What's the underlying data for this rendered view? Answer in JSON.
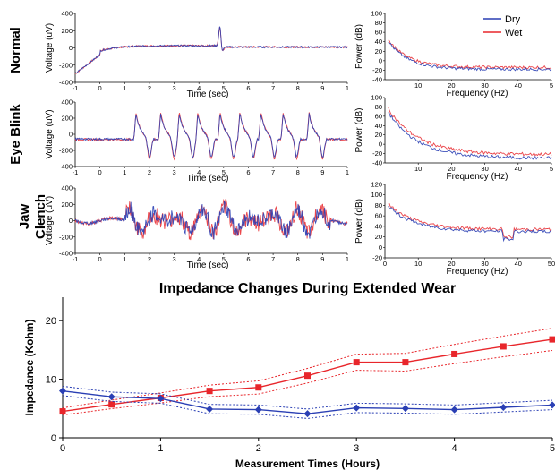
{
  "colors": {
    "dry": "#2a3fb4",
    "wet": "#e8262b"
  },
  "legend": {
    "dry": "Dry",
    "wet": "Wet"
  },
  "rows": [
    {
      "label": "Normal"
    },
    {
      "label": "Eye Blink"
    },
    {
      "label": "Jaw Clench"
    }
  ],
  "chart_data": [
    {
      "type": "line",
      "title": "",
      "xlabel": "Time (sec)",
      "ylabel": "Voltage (uV)",
      "xlim": [
        -1,
        10
      ],
      "ylim": [
        -400,
        400
      ],
      "x_ticks": [
        "-1",
        "0",
        "1",
        "2",
        "3",
        "4",
        "5",
        "6",
        "7",
        "8",
        "9",
        "1"
      ],
      "y_ticks": [
        "400",
        "200",
        "0",
        "-200",
        "-400"
      ],
      "series": [
        {
          "name": "Dry"
        },
        {
          "name": "Wet"
        }
      ]
    },
    {
      "type": "line",
      "title": "",
      "xlabel": "Frequency (Hz)",
      "ylabel": "Power (dB)",
      "xlim": [
        0,
        50
      ],
      "ylim": [
        -40,
        100
      ],
      "x_ticks": [
        "10",
        "20",
        "30",
        "40",
        "5"
      ],
      "y_ticks": [
        "100",
        "80",
        "60",
        "40",
        "20",
        "0",
        "-20",
        "-40"
      ],
      "series": [
        {
          "name": "Dry"
        },
        {
          "name": "Wet"
        }
      ]
    },
    {
      "type": "line",
      "title": "",
      "xlabel": "Time (sec)",
      "ylabel": "Voltage (uV)",
      "xlim": [
        -1,
        10
      ],
      "ylim": [
        -400,
        400
      ],
      "x_ticks": [
        "-1",
        "0",
        "1",
        "2",
        "3",
        "4",
        "5",
        "6",
        "7",
        "8",
        "9",
        "1"
      ],
      "y_ticks": [
        "400",
        "200",
        "0",
        "-200",
        "-400"
      ],
      "series": [
        {
          "name": "Dry"
        },
        {
          "name": "Wet"
        }
      ]
    },
    {
      "type": "line",
      "title": "",
      "xlabel": "Frequency (Hz)",
      "ylabel": "Power (dB)",
      "xlim": [
        0,
        50
      ],
      "ylim": [
        -40,
        100
      ],
      "x_ticks": [
        "10",
        "20",
        "30",
        "40",
        "5"
      ],
      "y_ticks": [
        "100",
        "80",
        "60",
        "40",
        "20",
        "0",
        "-20",
        "-40"
      ],
      "series": [
        {
          "name": "Dry"
        },
        {
          "name": "Wet"
        }
      ]
    },
    {
      "type": "line",
      "title": "",
      "xlabel": "Time (sec)",
      "ylabel": "Voltage (uV)",
      "xlim": [
        -1,
        10
      ],
      "ylim": [
        -400,
        400
      ],
      "x_ticks": [
        "-1",
        "0",
        "1",
        "2",
        "3",
        "4",
        "5",
        "6",
        "7",
        "8",
        "9",
        "1"
      ],
      "y_ticks": [
        "400",
        "200",
        "0",
        "-200",
        "-400"
      ],
      "series": [
        {
          "name": "Dry"
        },
        {
          "name": "Wet"
        }
      ]
    },
    {
      "type": "line",
      "title": "",
      "xlabel": "Frequency (Hz)",
      "ylabel": "Power (dB)",
      "xlim": [
        0,
        50
      ],
      "ylim": [
        -20,
        120
      ],
      "x_ticks": [
        "0",
        "10",
        "20",
        "30",
        "40",
        "50"
      ],
      "y_ticks": [
        "120",
        "100",
        "80",
        "60",
        "40",
        "20",
        "0",
        "-20"
      ],
      "series": [
        {
          "name": "Dry"
        },
        {
          "name": "Wet"
        }
      ]
    },
    {
      "type": "line",
      "title": "Impedance Changes During Extended Wear",
      "xlabel": "Measurement Times (Hours)",
      "ylabel": "Impedance (Kohm)",
      "xlim": [
        0,
        5
      ],
      "ylim": [
        0,
        24
      ],
      "x_ticks": [
        "0",
        "1",
        "2",
        "3",
        "4",
        "5"
      ],
      "y_ticks": [
        "0",
        "10",
        "20"
      ],
      "x": [
        0,
        0.5,
        1,
        1.5,
        2,
        2.5,
        3,
        3.5,
        4,
        4.5,
        5
      ],
      "series": [
        {
          "name": "Wet",
          "values": [
            4.5,
            5.7,
            6.8,
            8.0,
            8.6,
            10.6,
            12.9,
            12.9,
            14.3,
            15.6,
            16.8
          ]
        },
        {
          "name": "Dry",
          "values": [
            8.0,
            7.0,
            6.7,
            4.9,
            4.8,
            4.1,
            5.1,
            5.0,
            4.8,
            5.2,
            5.6
          ]
        }
      ]
    }
  ]
}
